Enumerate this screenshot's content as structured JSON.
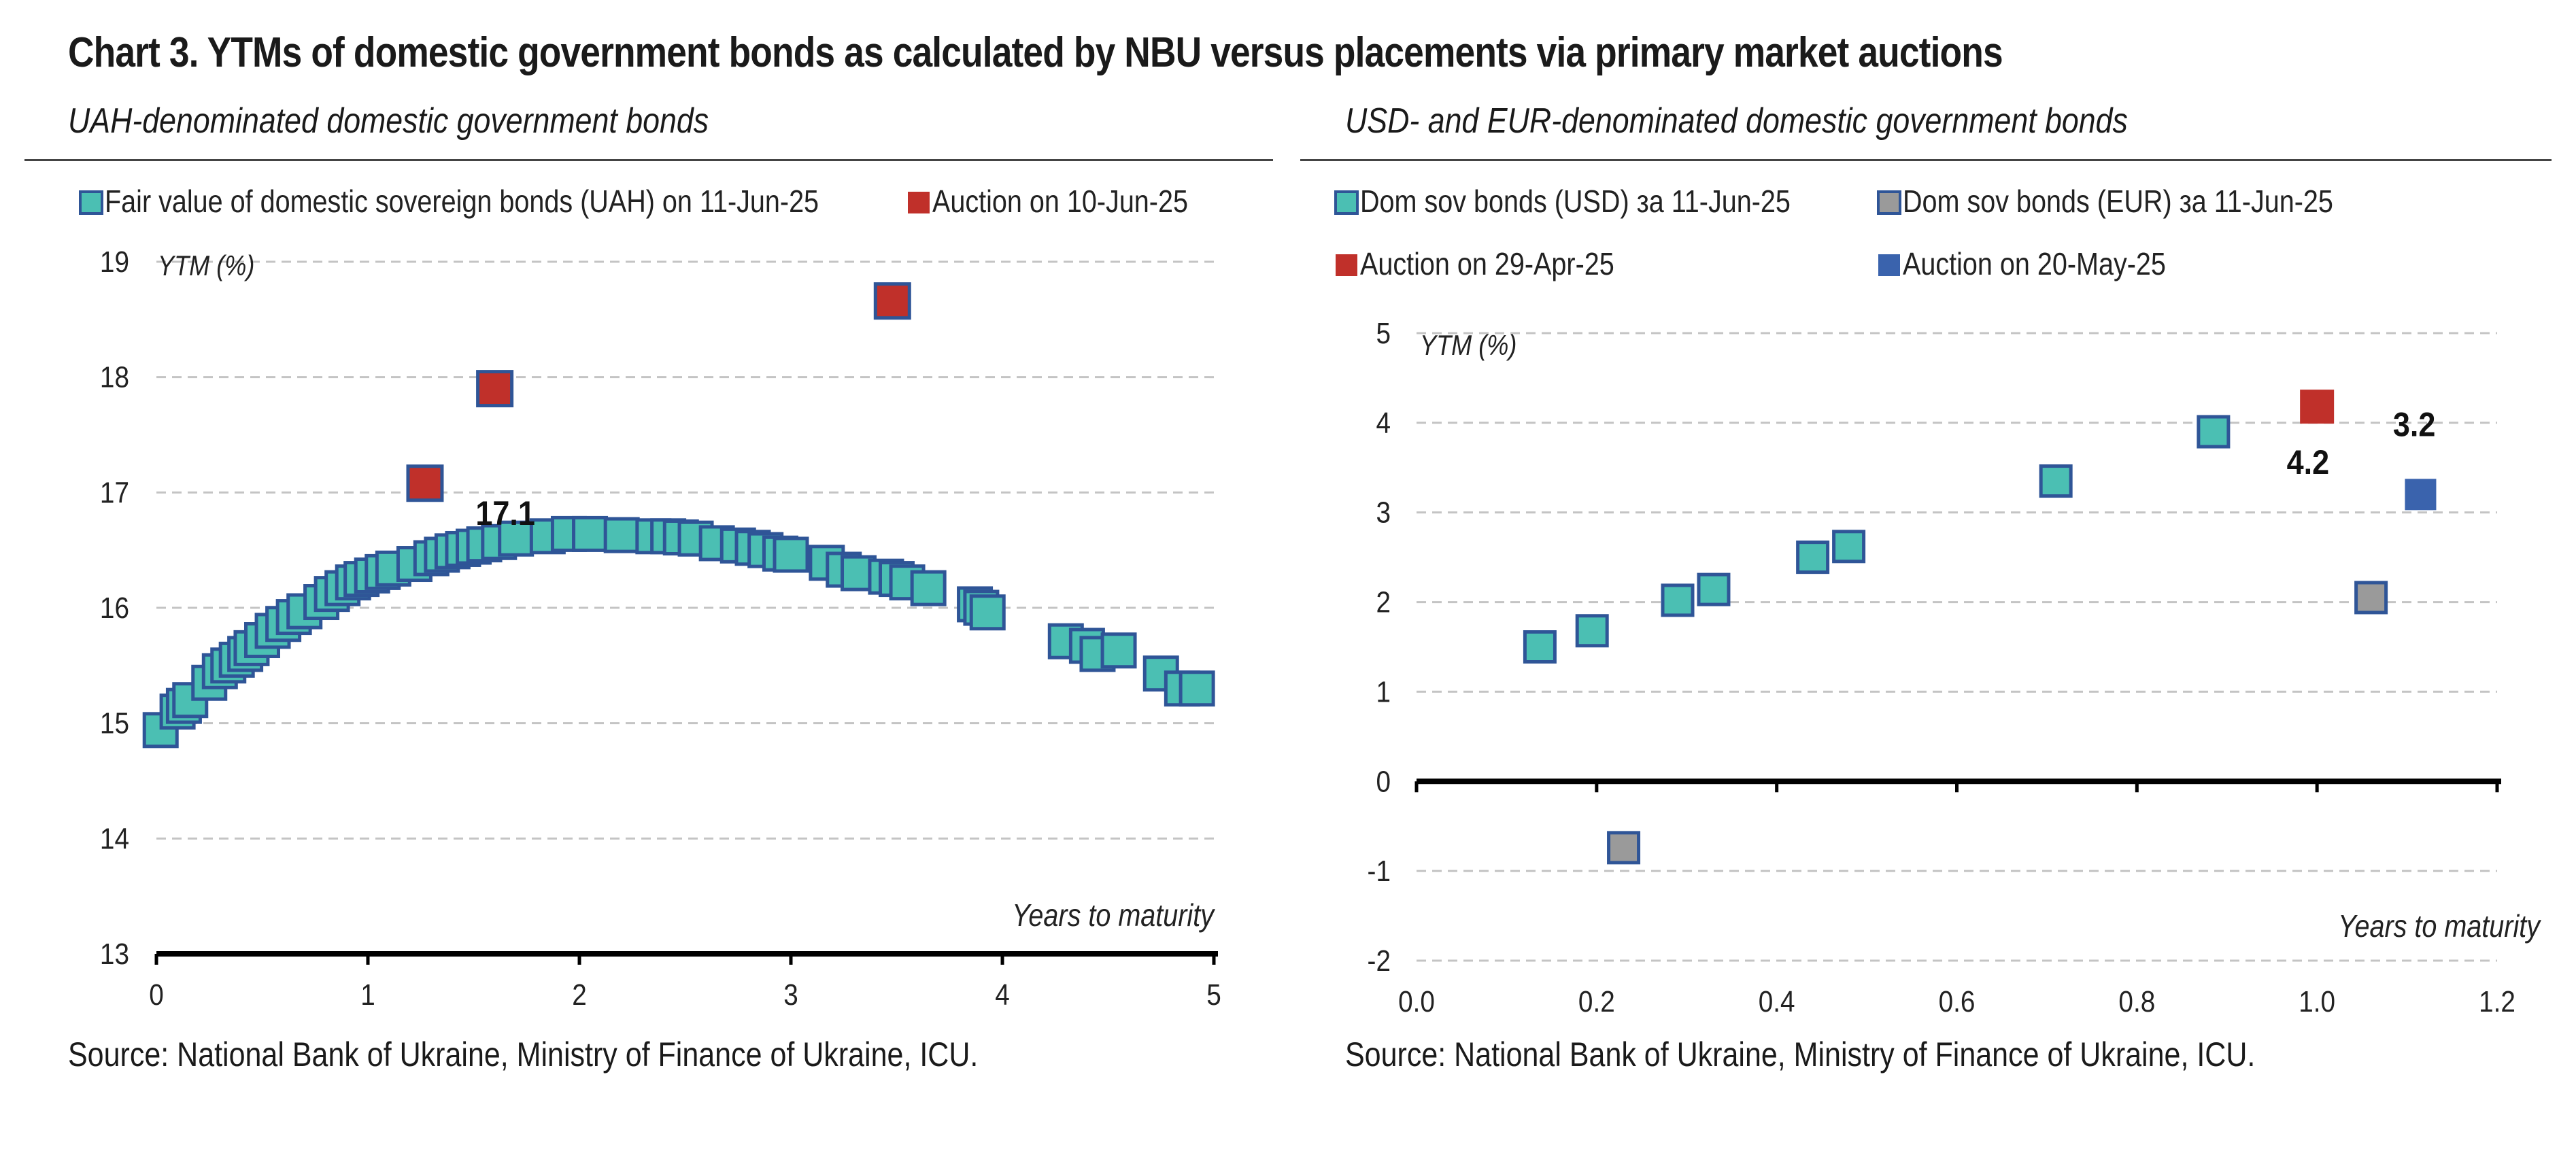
{
  "title": "Chart 3. YTMs of domestic government bonds as calculated by NBU versus placements via primary market auctions",
  "source_text": "Source: National Bank of Ukraine, Ministry of Finance of Ukraine, ICU.",
  "colors": {
    "teal": "#4bbfb3",
    "blue_edge": "#2f5597",
    "red": "#c0302a",
    "gray": "#9a9a9a",
    "blue": "#3a63ad"
  },
  "chart_data": [
    {
      "type": "scatter",
      "subtitle": "UAH-denominated domestic government bonds",
      "xlabel": "Years to maturity",
      "ylabel": "YTM (%)",
      "xlim": [
        0,
        5
      ],
      "ylim": [
        13,
        19
      ],
      "xticks": [
        "0",
        "1",
        "2",
        "3",
        "4",
        "5"
      ],
      "yticks": [
        "13",
        "14",
        "15",
        "16",
        "17",
        "18",
        "19"
      ],
      "grid": "horizontal dashed",
      "legend_position": "top",
      "series": [
        {
          "name": "Fair value of domestic sovereign bonds (UAH) on 11-Jun-25",
          "color": "#4bbfb3",
          "points": [
            [
              0.02,
              14.94
            ],
            [
              0.1,
              15.1
            ],
            [
              0.13,
              15.15
            ],
            [
              0.16,
              15.2
            ],
            [
              0.25,
              15.35
            ],
            [
              0.3,
              15.45
            ],
            [
              0.34,
              15.5
            ],
            [
              0.38,
              15.55
            ],
            [
              0.42,
              15.6
            ],
            [
              0.45,
              15.65
            ],
            [
              0.5,
              15.72
            ],
            [
              0.55,
              15.8
            ],
            [
              0.6,
              15.86
            ],
            [
              0.65,
              15.92
            ],
            [
              0.7,
              15.97
            ],
            [
              0.78,
              16.05
            ],
            [
              0.83,
              16.12
            ],
            [
              0.88,
              16.17
            ],
            [
              0.93,
              16.22
            ],
            [
              0.97,
              16.25
            ],
            [
              1.02,
              16.28
            ],
            [
              1.07,
              16.31
            ],
            [
              1.12,
              16.34
            ],
            [
              1.22,
              16.38
            ],
            [
              1.3,
              16.43
            ],
            [
              1.35,
              16.46
            ],
            [
              1.4,
              16.49
            ],
            [
              1.45,
              16.51
            ],
            [
              1.5,
              16.53
            ],
            [
              1.55,
              16.55
            ],
            [
              1.62,
              16.57
            ],
            [
              1.7,
              16.6
            ],
            [
              1.85,
              16.62
            ],
            [
              1.95,
              16.64
            ],
            [
              2.05,
              16.64
            ],
            [
              2.2,
              16.63
            ],
            [
              2.35,
              16.62
            ],
            [
              2.42,
              16.62
            ],
            [
              2.48,
              16.61
            ],
            [
              2.55,
              16.6
            ],
            [
              2.65,
              16.56
            ],
            [
              2.75,
              16.54
            ],
            [
              2.82,
              16.52
            ],
            [
              2.88,
              16.5
            ],
            [
              2.95,
              16.47
            ],
            [
              3.0,
              16.46
            ],
            [
              3.17,
              16.39
            ],
            [
              3.25,
              16.33
            ],
            [
              3.32,
              16.3
            ],
            [
              3.45,
              16.27
            ],
            [
              3.5,
              16.25
            ],
            [
              3.55,
              16.22
            ],
            [
              3.65,
              16.17
            ],
            [
              3.87,
              16.03
            ],
            [
              3.9,
              16.0
            ],
            [
              3.93,
              15.96
            ],
            [
              4.3,
              15.71
            ],
            [
              4.4,
              15.67
            ],
            [
              4.45,
              15.6
            ],
            [
              4.55,
              15.63
            ],
            [
              4.75,
              15.43
            ],
            [
              4.85,
              15.3
            ],
            [
              4.92,
              15.3
            ]
          ]
        },
        {
          "name": "Auction on 10-Jun-25",
          "color": "#c0302a",
          "points": [
            [
              1.27,
              17.08
            ],
            [
              1.6,
              17.9
            ],
            [
              3.48,
              18.66
            ]
          ]
        }
      ],
      "annotations": [
        {
          "text": "17.1",
          "x": 1.65,
          "y": 16.72
        }
      ]
    },
    {
      "type": "scatter",
      "subtitle": "USD- and EUR-denominated domestic government bonds",
      "xlabel": "Years to maturity",
      "ylabel": "YTM (%)",
      "xlim": [
        0,
        1.2
      ],
      "ylim": [
        -2,
        5
      ],
      "xticks": [
        "0.0",
        "0.2",
        "0.4",
        "0.6",
        "0.8",
        "1.0",
        "1.2"
      ],
      "yticks": [
        "-2",
        "-1",
        "0",
        "1",
        "2",
        "3",
        "4",
        "5"
      ],
      "grid": "horizontal dashed",
      "legend_position": "top",
      "series": [
        {
          "name": "Dom sov bonds (USD) за 11-Jun-25",
          "color": "#4bbfb3",
          "points": [
            [
              0.137,
              1.5
            ],
            [
              0.195,
              1.68
            ],
            [
              0.29,
              2.02
            ],
            [
              0.33,
              2.14
            ],
            [
              0.44,
              2.5
            ],
            [
              0.48,
              2.62
            ],
            [
              0.71,
              3.35
            ],
            [
              0.885,
              3.9
            ]
          ]
        },
        {
          "name": "Dom sov bonds (EUR) за 11-Jun-25",
          "color": "#9a9a9a",
          "points": [
            [
              0.23,
              -0.74
            ],
            [
              1.06,
              2.05
            ]
          ]
        },
        {
          "name": "Auction on 29-Apr-25",
          "color": "#c0302a",
          "points": [
            [
              1.0,
              4.18
            ]
          ]
        },
        {
          "name": "Auction on 20-May-25",
          "color": "#3a63ad",
          "points": [
            [
              1.115,
              3.2
            ]
          ]
        }
      ],
      "annotations": [
        {
          "text": "4.2",
          "x": 0.99,
          "y": 3.43
        },
        {
          "text": "3.2",
          "x": 1.108,
          "y": 3.85
        }
      ]
    }
  ]
}
